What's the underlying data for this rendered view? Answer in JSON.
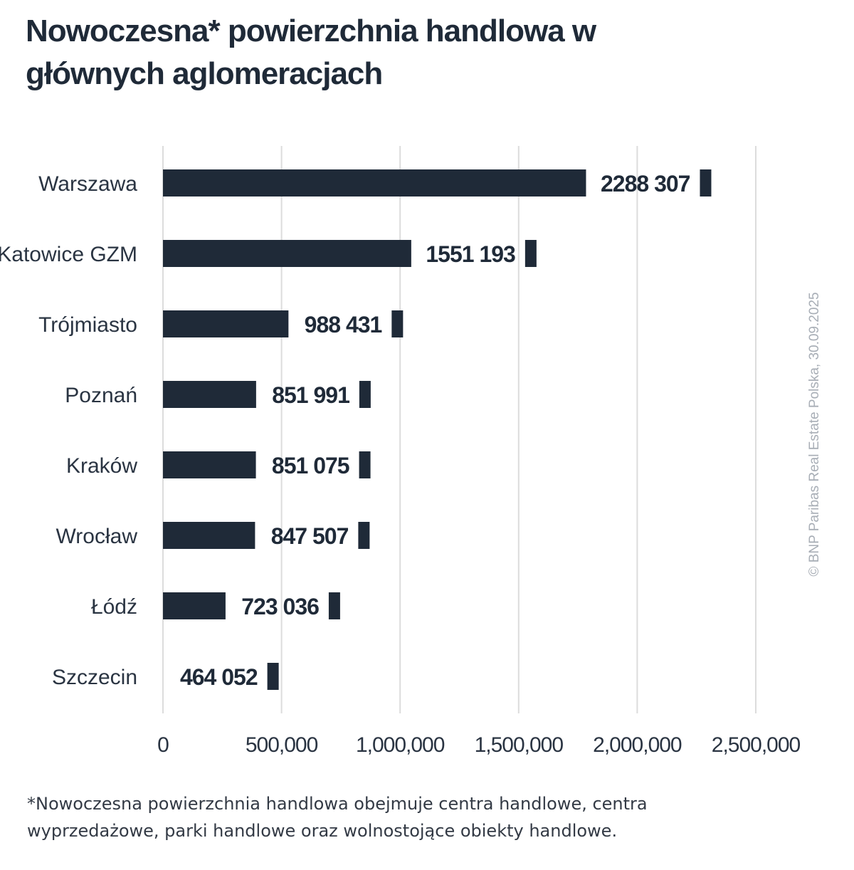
{
  "chart_data": {
    "type": "bar",
    "orientation": "horizontal",
    "title": "Nowoczesna* powierzchnia handlowa w głównych aglomeracjach",
    "categories": [
      "Warszawa",
      "Katowice GZM",
      "Trójmiasto",
      "Poznań",
      "Kraków",
      "Wrocław",
      "Łódź",
      "Szczecin"
    ],
    "values": [
      2288307,
      1551193,
      988431,
      851991,
      851075,
      847507,
      723036,
      464052
    ],
    "value_labels": [
      "2288 307",
      "1551 193",
      "988 431",
      "851 991",
      "851 075",
      "847 507",
      "723 036",
      "464 052"
    ],
    "xlim": [
      0,
      2500000
    ],
    "xticks": [
      0,
      500000,
      1000000,
      1500000,
      2000000,
      2500000
    ],
    "xtick_labels": [
      "0",
      "500,000",
      "1,000,000",
      "1,500,000",
      "2,000,000",
      "2,500,000"
    ],
    "grid": "vertical",
    "bar_color": "#1f2a38",
    "grid_color": "#dcdcdc"
  },
  "footnote": "*Nowoczesna powierzchnia handlowa obejmuje centra handlowe, centra wyprzedażowe, parki handlowe oraz wolnostojące obiekty handlowe.",
  "source": "© BNP Paribas Real Estate Polska, 30.09.2025"
}
